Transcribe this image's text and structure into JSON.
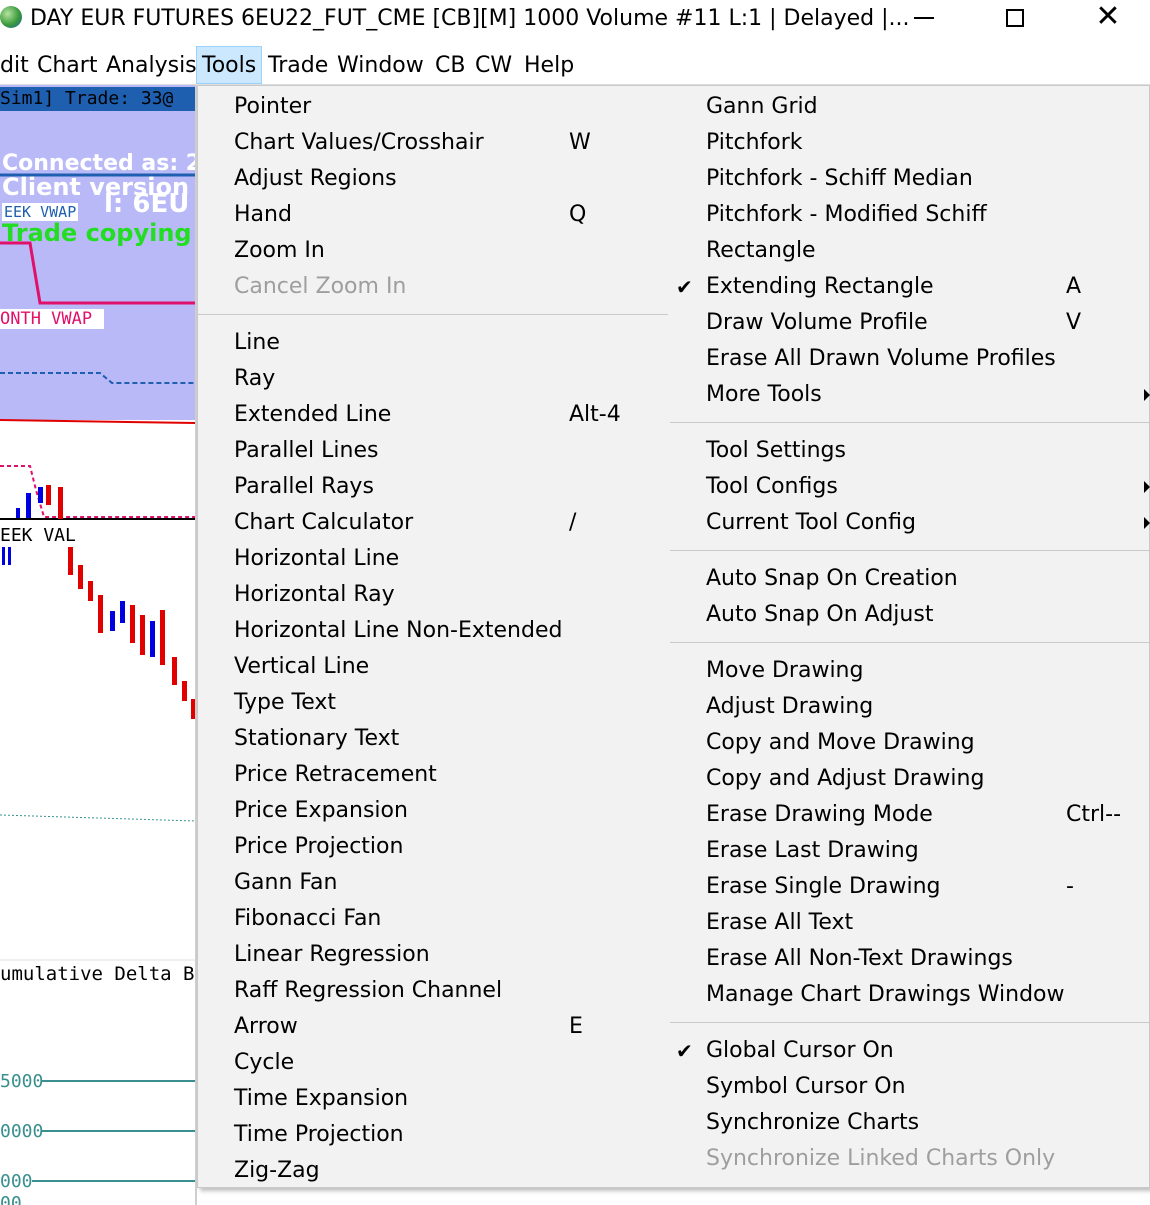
{
  "window": {
    "title": "DAY EUR FUTURES 6EU22_FUT_CME [CB][M]  1000 Volume  #11 L:1 | Delayed |...",
    "controls": {
      "minimize": "—",
      "maximize": "□",
      "close": "✕"
    }
  },
  "menubar": {
    "items": [
      {
        "label": "dit"
      },
      {
        "label": "Chart"
      },
      {
        "label": "Analysis"
      },
      {
        "label": "Tools"
      },
      {
        "label": "Trade"
      },
      {
        "label": "Window"
      },
      {
        "label": "CB"
      },
      {
        "label": "CW"
      },
      {
        "label": "Help"
      }
    ],
    "active": "Tools"
  },
  "chart_background": {
    "status_strip": "Sim1]    Trade: 33@",
    "connected": "Connected as: 2",
    "client_version": "Client version",
    "week_vwap": "EEK VWAP",
    "overlay": "l: 6EU",
    "trade_copying": "Trade copying is",
    "month_vwap": "ONTH VWAP",
    "week_val": "EEK VAL",
    "cumulative_delta": "umulative Delta B",
    "axis_labels": [
      "5000",
      "0000",
      "000",
      "00"
    ],
    "colors": {
      "panel": "#b9b9f8",
      "strip": "#1e5fb0",
      "green_text": "#22dd22",
      "magenta": "#e0106b",
      "candle_red": "#e00000",
      "candle_blue": "#0000e0",
      "teal": "#3a8f8f"
    }
  },
  "tools_menu": {
    "left": {
      "group1": [
        {
          "label": "Pointer",
          "shortcut": ""
        },
        {
          "label": "Chart Values/Crosshair",
          "shortcut": "W"
        },
        {
          "label": "Adjust Regions",
          "shortcut": ""
        },
        {
          "label": "Hand",
          "shortcut": "Q"
        },
        {
          "label": "Zoom In",
          "shortcut": ""
        },
        {
          "label": "Cancel Zoom In",
          "shortcut": ""
        }
      ],
      "group2": [
        {
          "label": "Line",
          "shortcut": ""
        },
        {
          "label": "Ray",
          "shortcut": ""
        },
        {
          "label": "Extended Line",
          "shortcut": "Alt-4"
        },
        {
          "label": "Parallel Lines",
          "shortcut": ""
        },
        {
          "label": "Parallel Rays",
          "shortcut": ""
        },
        {
          "label": "Chart Calculator",
          "shortcut": "/"
        },
        {
          "label": "Horizontal Line",
          "shortcut": ""
        },
        {
          "label": "Horizontal Ray",
          "shortcut": ""
        },
        {
          "label": "Horizontal Line Non-Extended",
          "shortcut": ""
        },
        {
          "label": "Vertical Line",
          "shortcut": ""
        },
        {
          "label": "Type Text",
          "shortcut": ""
        },
        {
          "label": "Stationary Text",
          "shortcut": ""
        },
        {
          "label": "Price Retracement",
          "shortcut": ""
        },
        {
          "label": "Price Expansion",
          "shortcut": ""
        },
        {
          "label": "Price Projection",
          "shortcut": ""
        },
        {
          "label": "Gann Fan",
          "shortcut": ""
        },
        {
          "label": "Fibonacci Fan",
          "shortcut": ""
        },
        {
          "label": "Linear Regression",
          "shortcut": ""
        },
        {
          "label": "Raff Regression Channel",
          "shortcut": ""
        },
        {
          "label": "Arrow",
          "shortcut": "E"
        },
        {
          "label": "Cycle",
          "shortcut": ""
        },
        {
          "label": "Time Expansion",
          "shortcut": ""
        },
        {
          "label": "Time Projection",
          "shortcut": ""
        },
        {
          "label": "Zig-Zag",
          "shortcut": ""
        }
      ]
    },
    "right": {
      "group1": [
        {
          "label": "Gann Grid",
          "shortcut": ""
        },
        {
          "label": "Pitchfork",
          "shortcut": ""
        },
        {
          "label": "Pitchfork - Schiff Median",
          "shortcut": ""
        },
        {
          "label": "Pitchfork - Modified Schiff",
          "shortcut": ""
        },
        {
          "label": "Rectangle",
          "shortcut": ""
        },
        {
          "label": "Extending Rectangle",
          "shortcut": "A"
        },
        {
          "label": "Draw Volume Profile",
          "shortcut": "V"
        },
        {
          "label": "Erase All Drawn Volume Profiles",
          "shortcut": ""
        },
        {
          "label": "More Tools",
          "shortcut": ""
        }
      ],
      "group2": [
        {
          "label": "Tool Settings",
          "shortcut": ""
        },
        {
          "label": "Tool Configs",
          "shortcut": ""
        },
        {
          "label": "Current Tool Config",
          "shortcut": ""
        }
      ],
      "group3": [
        {
          "label": "Auto Snap On Creation",
          "shortcut": ""
        },
        {
          "label": "Auto Snap On Adjust",
          "shortcut": ""
        }
      ],
      "group4": [
        {
          "label": "Move Drawing",
          "shortcut": ""
        },
        {
          "label": "Adjust Drawing",
          "shortcut": ""
        },
        {
          "label": "Copy and Move Drawing",
          "shortcut": ""
        },
        {
          "label": "Copy and Adjust Drawing",
          "shortcut": ""
        },
        {
          "label": "Erase Drawing Mode",
          "shortcut": "Ctrl--"
        },
        {
          "label": "Erase Last Drawing",
          "shortcut": ""
        },
        {
          "label": "Erase Single Drawing",
          "shortcut": "-"
        },
        {
          "label": "Erase All Text",
          "shortcut": ""
        },
        {
          "label": "Erase All Non-Text Drawings",
          "shortcut": ""
        },
        {
          "label": "Manage Chart Drawings Window",
          "shortcut": ""
        }
      ],
      "group5": [
        {
          "label": "Global Cursor On",
          "shortcut": ""
        },
        {
          "label": "Symbol Cursor On",
          "shortcut": ""
        },
        {
          "label": "Synchronize Charts",
          "shortcut": ""
        },
        {
          "label": "Synchronize Linked Charts Only",
          "shortcut": ""
        }
      ]
    },
    "check_mark": "✔"
  }
}
